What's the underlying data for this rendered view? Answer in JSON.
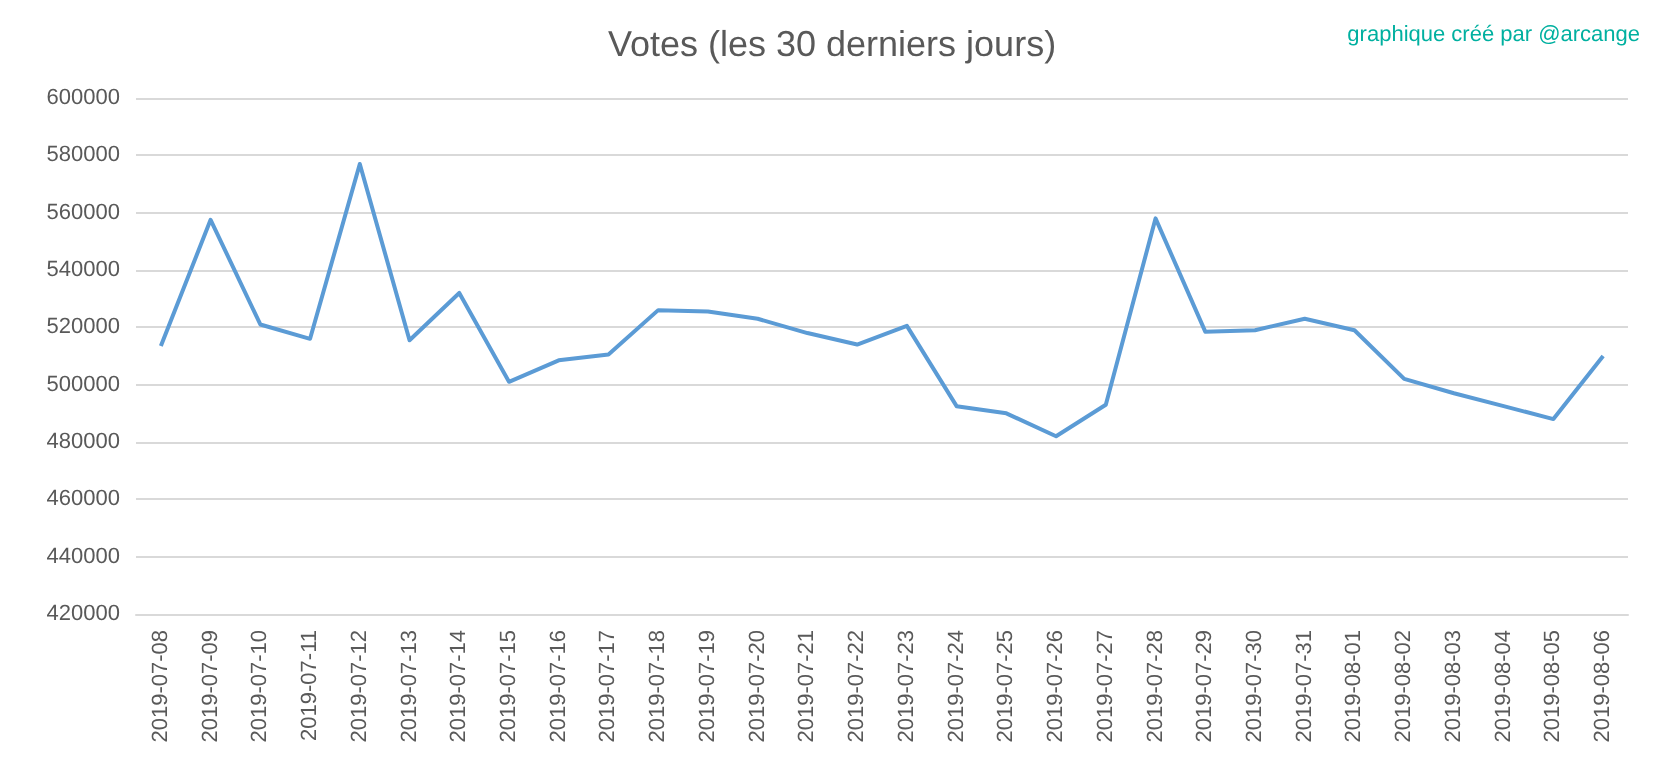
{
  "chart_data": {
    "type": "line",
    "title": "Votes (les 30 derniers jours)",
    "annotations": [
      "graphique créé par @arcange"
    ],
    "categories": [
      "2019-07-08",
      "2019-07-09",
      "2019-07-10",
      "2019-07-11",
      "2019-07-12",
      "2019-07-13",
      "2019-07-14",
      "2019-07-15",
      "2019-07-16",
      "2019-07-17",
      "2019-07-18",
      "2019-07-19",
      "2019-07-20",
      "2019-07-21",
      "2019-07-22",
      "2019-07-23",
      "2019-07-24",
      "2019-07-25",
      "2019-07-26",
      "2019-07-27",
      "2019-07-28",
      "2019-07-29",
      "2019-07-30",
      "2019-07-31",
      "2019-08-01",
      "2019-08-02",
      "2019-08-03",
      "2019-08-04",
      "2019-08-05",
      "2019-08-06"
    ],
    "series": [
      {
        "color": "#5b9bd5",
        "values": [
          513500,
          557500,
          521000,
          516000,
          577000,
          515500,
          532000,
          501000,
          508500,
          510500,
          526000,
          525500,
          523000,
          518000,
          514000,
          520500,
          492500,
          490000,
          482000,
          493000,
          558000,
          518500,
          519000,
          523000,
          519000,
          502000,
          497000,
          492500,
          488000,
          510000
        ]
      }
    ],
    "ylim": [
      420000,
      600000
    ],
    "yticks": [
      420000,
      440000,
      460000,
      480000,
      500000,
      520000,
      540000,
      560000,
      580000,
      600000
    ],
    "grid": "y",
    "marker": "none",
    "line_style": "solid"
  }
}
